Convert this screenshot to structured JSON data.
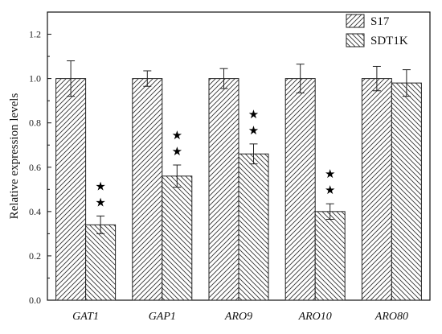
{
  "chart_data": {
    "type": "bar",
    "categories": [
      "GAT1",
      "GAP1",
      "ARO9",
      "ARO10",
      "ARO80"
    ],
    "series": [
      {
        "name": "S17",
        "values": [
          1.0,
          1.0,
          1.0,
          1.0,
          1.0
        ],
        "errors": [
          0.08,
          0.035,
          0.045,
          0.065,
          0.055
        ],
        "hatch": "forward-diagonal"
      },
      {
        "name": "SDT1K",
        "values": [
          0.34,
          0.56,
          0.66,
          0.4,
          0.98
        ],
        "errors": [
          0.04,
          0.05,
          0.045,
          0.035,
          0.06
        ],
        "hatch": "back-diagonal"
      }
    ],
    "significance": [
      "★\n★",
      "★\n★",
      "★\n★",
      "★\n★",
      ""
    ],
    "xlabel": "",
    "ylabel": "Relative expression levels",
    "ylim": [
      0.0,
      1.3
    ],
    "yticks": [
      "0.0",
      "0.2",
      "0.4",
      "0.6",
      "0.8",
      "1.0",
      "1.2"
    ],
    "legend_position": "top-right",
    "grid": false
  }
}
